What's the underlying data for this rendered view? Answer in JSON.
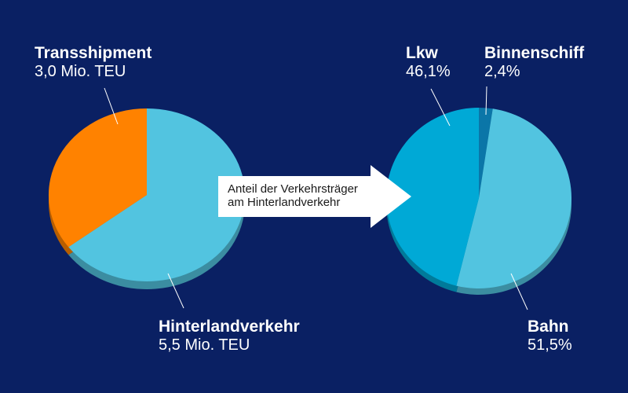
{
  "colors": {
    "background": "#0a2063",
    "orange": "#ff8200",
    "light_blue": "#52c4e0",
    "medium_blue": "#00a9d6",
    "dark_blue": "#0b76a8",
    "arrow": "#ffffff"
  },
  "arrow": {
    "line1": "Anteil der Verkehrsträger",
    "line2": "am Hinterlandverkehr"
  },
  "chart_data": [
    {
      "type": "pie",
      "title": "",
      "slices": [
        {
          "label": "Transshipment",
          "value_text": "3,0 Mio. TEU",
          "value": 3.0,
          "unit": "Mio. TEU",
          "color": "#ff8200"
        },
        {
          "label": "Hinterlandverkehr",
          "value_text": "5,5 Mio. TEU",
          "value": 5.5,
          "unit": "Mio. TEU",
          "color": "#52c4e0"
        }
      ]
    },
    {
      "type": "pie",
      "title": "",
      "slices": [
        {
          "label": "Lkw",
          "value_text": "46,1%",
          "value": 46.1,
          "unit": "%",
          "color": "#00a9d6"
        },
        {
          "label": "Binnenschiff",
          "value_text": "2,4%",
          "value": 2.4,
          "unit": "%",
          "color": "#0b76a8"
        },
        {
          "label": "Bahn",
          "value_text": "51,5%",
          "value": 51.5,
          "unit": "%",
          "color": "#52c4e0"
        }
      ]
    }
  ]
}
